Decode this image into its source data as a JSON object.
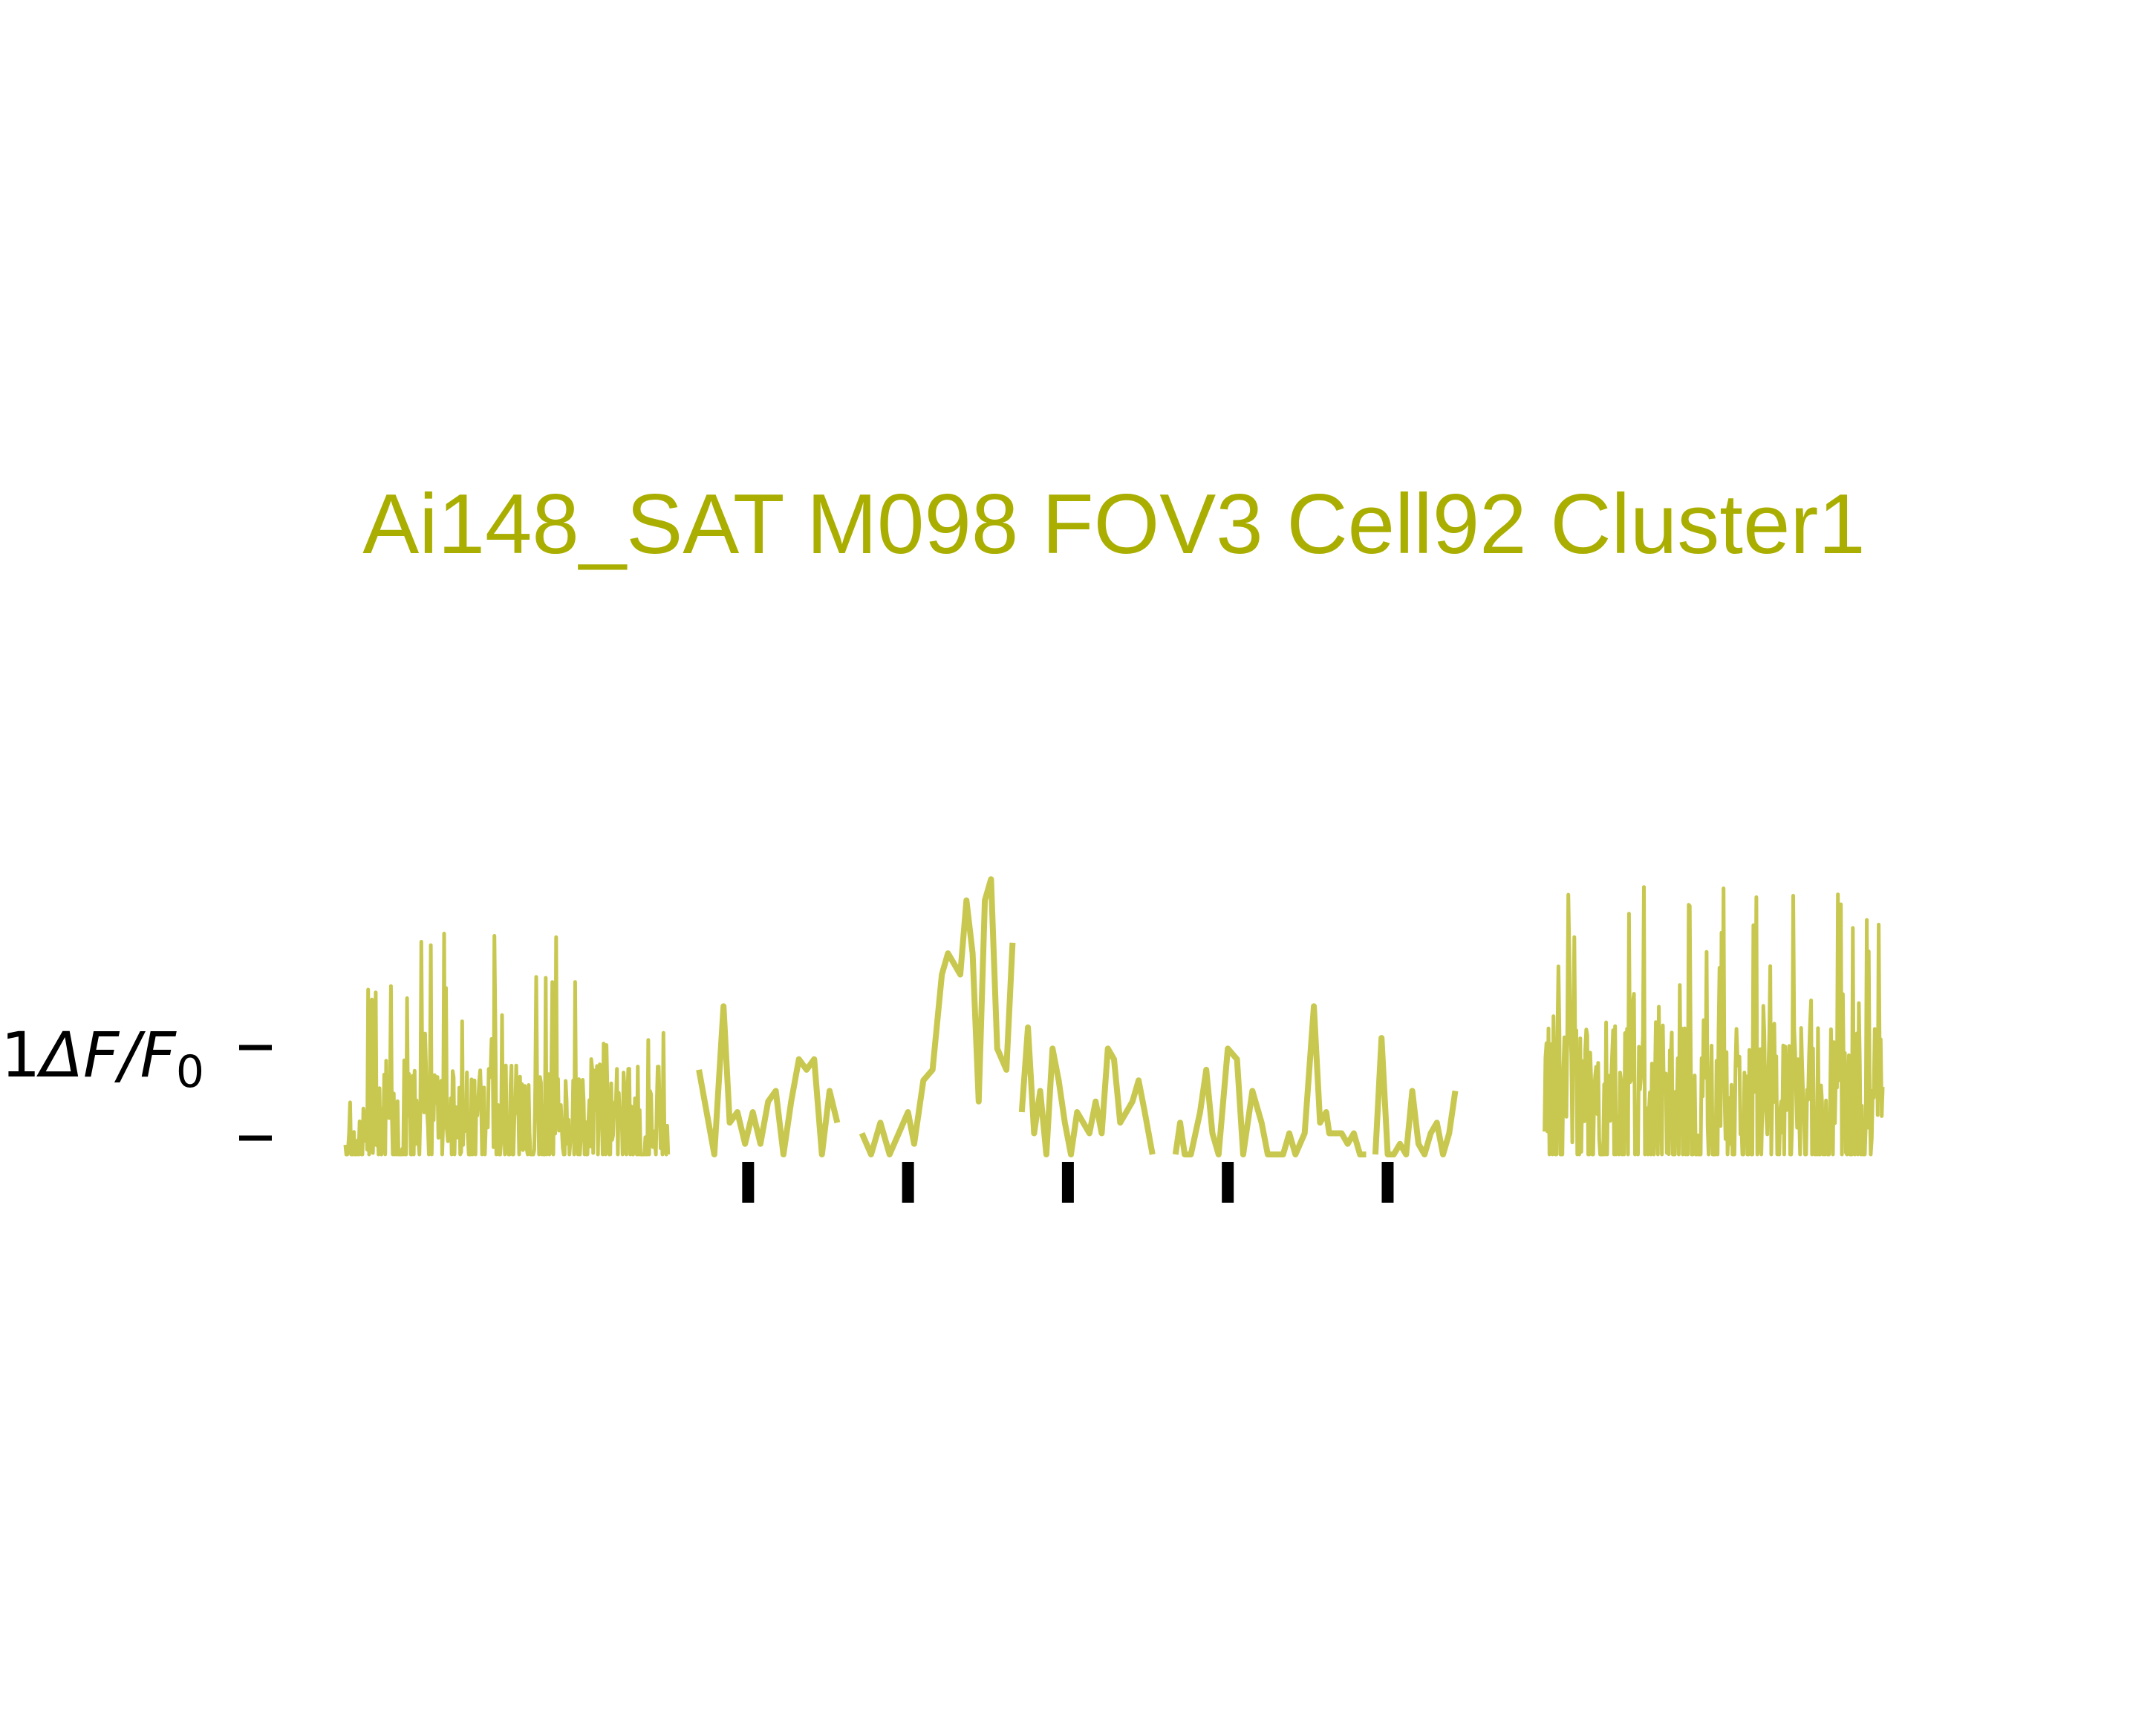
{
  "title": "Ai148_SAT M098 FOV3 Cell92 Cluster1",
  "colors": {
    "title": "#aaae00",
    "trace": "#c8c850",
    "marker": "#000000",
    "background": "#ffffff"
  },
  "chart_data": {
    "type": "line",
    "title": "Ai148_SAT M098 FOV3 Cell92 Cluster1",
    "ylabel_prefix": "1",
    "ylabel": "ΔF/F",
    "ylabel_sub": "0",
    "scale_bar": {
      "value": 1,
      "unit": "ΔF/F0"
    },
    "x_range": [
      0,
      100
    ],
    "ylim": [
      0,
      2.7
    ],
    "clip_at_zero": true,
    "grid": false,
    "axes_visible": false,
    "segments": [
      {
        "name": "baseline-pre",
        "style": "noisy-dense",
        "x": [
          0,
          21
        ],
        "baseline": 0.3,
        "noise": 0.5,
        "peak": 2.1,
        "seed": 11
      },
      {
        "name": "stim-block-1",
        "style": "line",
        "x": [
          23.0,
          24.0,
          24.6,
          25.0,
          25.5,
          26.0,
          26.5,
          27.0,
          27.5,
          28.0,
          28.5,
          29.0,
          29.5,
          30.0,
          30.5,
          31.0,
          31.5,
          32.0
        ],
        "y": [
          0.8,
          0.0,
          1.4,
          0.3,
          0.4,
          0.1,
          0.4,
          0.1,
          0.5,
          0.6,
          0.0,
          0.5,
          0.9,
          0.8,
          0.9,
          0.0,
          0.6,
          0.3
        ]
      },
      {
        "name": "stim-block-2",
        "style": "line",
        "x": [
          33.6,
          34.2,
          34.8,
          35.4,
          36.0,
          36.6,
          37.0,
          37.6,
          38.2,
          38.8,
          39.2,
          39.6,
          40.0,
          40.4,
          40.8,
          41.2,
          41.6,
          42.0,
          42.4,
          43.0,
          43.4
        ],
        "y": [
          0.2,
          0.0,
          0.3,
          0.0,
          0.2,
          0.4,
          0.1,
          0.7,
          0.8,
          1.7,
          1.9,
          1.8,
          1.7,
          2.4,
          1.9,
          0.5,
          2.4,
          2.6,
          1.0,
          0.8,
          2.0
        ]
      },
      {
        "name": "stim-block-3",
        "style": "line",
        "x": [
          44.0,
          44.4,
          44.8,
          45.2,
          45.6,
          46.0,
          46.4,
          46.8,
          47.2,
          47.6,
          48.0,
          48.4,
          48.8,
          49.2,
          49.6,
          50.0,
          50.4,
          50.8,
          51.2,
          51.6,
          52.0,
          52.5
        ],
        "y": [
          0.4,
          1.2,
          0.2,
          0.6,
          0.0,
          1.0,
          0.7,
          0.3,
          0.0,
          0.4,
          0.3,
          0.2,
          0.5,
          0.2,
          1.0,
          0.9,
          0.3,
          0.4,
          0.5,
          0.7,
          0.4,
          0.0
        ]
      },
      {
        "name": "stim-block-4",
        "style": "line",
        "x": [
          54.0,
          54.3,
          54.6,
          55.0,
          55.6,
          56.0,
          56.4,
          56.8,
          57.4,
          58.0,
          58.4,
          59.0,
          59.6,
          60.0,
          60.5,
          61.0,
          61.4,
          61.8,
          62.4,
          63.0,
          63.4,
          63.8,
          64.0,
          64.4,
          64.8,
          65.2,
          65.6,
          66.0,
          66.4
        ],
        "y": [
          0.0,
          0.3,
          0.0,
          0.0,
          0.4,
          0.8,
          0.2,
          0.0,
          1.0,
          0.9,
          0.0,
          0.6,
          0.3,
          0.0,
          0.0,
          0.0,
          0.2,
          0.0,
          0.2,
          1.4,
          0.3,
          0.4,
          0.2,
          0.2,
          0.2,
          0.1,
          0.2,
          0.0,
          0.0
        ]
      },
      {
        "name": "stim-block-5",
        "style": "line",
        "x": [
          67.0,
          67.4,
          67.8,
          68.2,
          68.6,
          69.0,
          69.4,
          69.8,
          70.2,
          70.6,
          71.0,
          71.4,
          71.8,
          72.2
        ],
        "y": [
          0.0,
          1.1,
          0.0,
          0.0,
          0.1,
          0.0,
          0.6,
          0.1,
          0.0,
          0.2,
          0.3,
          0.0,
          0.2,
          0.6
        ]
      },
      {
        "name": "baseline-post",
        "style": "noisy-dense",
        "x": [
          78,
          100
        ],
        "baseline": 0.5,
        "noise": 0.7,
        "peak": 2.6,
        "seed": 29
      }
    ],
    "stimulus_onsets": [
      26.2,
      36.6,
      47.0,
      57.4,
      67.8
    ]
  }
}
